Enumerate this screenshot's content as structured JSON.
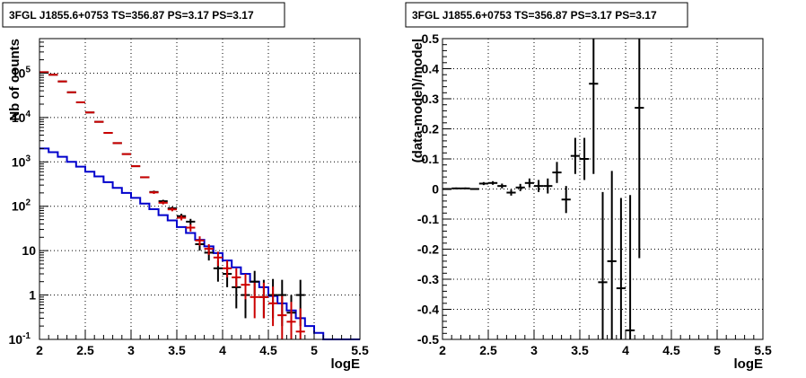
{
  "chart_data": [
    {
      "type": "scatter",
      "title": "3FGL J1855.6+0753 TS=356.87 PS=3.17 PS=3.17",
      "xlabel": "logE",
      "ylabel": "Nb of counts",
      "xlim": [
        2,
        5.5
      ],
      "ylim": [
        0.1,
        600000
      ],
      "yscale": "log",
      "grid": true,
      "x_ticks": [
        "2",
        "2.5",
        "3",
        "3.5",
        "4",
        "4.5",
        "5",
        "5.5"
      ],
      "y_ticks": [
        {
          "value": 0.1,
          "label": "10^-1"
        },
        {
          "value": 1,
          "label": "1"
        },
        {
          "value": 10,
          "label": "10"
        },
        {
          "value": 100,
          "label": "10^2"
        },
        {
          "value": 1000,
          "label": "10^3"
        },
        {
          "value": 10000,
          "label": "10^4"
        },
        {
          "value": 100000,
          "label": "10^5"
        }
      ],
      "bin_width": 0.1,
      "series": [
        {
          "color": "#0000cc",
          "style": "step",
          "x": [
            2.0,
            2.1,
            2.2,
            2.3,
            2.4,
            2.5,
            2.6,
            2.7,
            2.8,
            2.9,
            3.0,
            3.1,
            3.2,
            3.3,
            3.4,
            3.5,
            3.6,
            3.7,
            3.8,
            3.9,
            4.0,
            4.1,
            4.2,
            4.3,
            4.4,
            4.5,
            4.6,
            4.7,
            4.8,
            4.9,
            5.0,
            5.1,
            5.2,
            5.3,
            5.4
          ],
          "y": [
            2000,
            1650,
            1300,
            1000,
            780,
            600,
            470,
            350,
            260,
            200,
            155,
            115,
            86,
            63,
            48,
            34,
            25,
            17.5,
            12.5,
            8.8,
            6,
            4.2,
            3,
            2,
            1.5,
            0.95,
            0.65,
            0.45,
            0.3,
            0.2,
            0.14,
            0.1,
            0.1,
            0.1,
            0.1
          ]
        },
        {
          "color": "#000000",
          "style": "errorbar",
          "x": [
            2.05,
            2.15,
            2.25,
            2.35,
            2.45,
            2.55,
            2.65,
            2.75,
            2.85,
            2.95,
            3.05,
            3.15,
            3.25,
            3.35,
            3.45,
            3.55,
            3.65,
            3.75,
            3.85,
            3.95,
            4.05,
            4.15,
            4.25,
            4.35,
            4.45,
            4.55,
            4.65,
            4.75,
            4.85
          ],
          "y": [
            105000,
            92000,
            65000,
            37000,
            22000,
            13000,
            8000,
            4500,
            2650,
            1500,
            800,
            450,
            210,
            130,
            90,
            60,
            45,
            14,
            9,
            4,
            3,
            1.5,
            1,
            2,
            0.9,
            1,
            1,
            0.4,
            1
          ],
          "yerr_lo": [
            0,
            0,
            0,
            0,
            0,
            0,
            0,
            0,
            0,
            0,
            0,
            0,
            15,
            10,
            8,
            8,
            7,
            4,
            3,
            2,
            1.5,
            1,
            0.7,
            1,
            0.6,
            0.7,
            0.8,
            0.3,
            0.8
          ],
          "yerr_hi": [
            0,
            0,
            0,
            0,
            0,
            0,
            0,
            0,
            0,
            0,
            0,
            0,
            15,
            10,
            8,
            8,
            7,
            4,
            3,
            2,
            1.5,
            1,
            1.5,
            1.5,
            1.3,
            1.3,
            1.2,
            0.6,
            1.2
          ]
        },
        {
          "color": "#cc0000",
          "style": "errorbar",
          "x": [
            2.05,
            2.15,
            2.25,
            2.35,
            2.45,
            2.55,
            2.65,
            2.75,
            2.85,
            2.95,
            3.05,
            3.15,
            3.25,
            3.35,
            3.45,
            3.55,
            3.65,
            3.75,
            3.85,
            3.95,
            4.05,
            4.15,
            4.25,
            4.35,
            4.45,
            4.55,
            4.65,
            4.75,
            4.85
          ],
          "y": [
            105000,
            92000,
            65000,
            37000,
            22000,
            13000,
            8000,
            4500,
            2650,
            1500,
            800,
            450,
            205,
            120,
            85,
            55,
            33,
            17,
            11,
            7,
            4,
            2.5,
            1.7,
            0.9,
            0.9,
            0.65,
            0.35,
            0.25,
            0.15
          ],
          "yerr_lo": [
            0,
            0,
            0,
            0,
            0,
            0,
            0,
            0,
            0,
            0,
            0,
            0,
            15,
            10,
            8,
            7,
            6,
            4,
            3,
            2.5,
            1.5,
            1,
            0.9,
            0.6,
            0.6,
            0.45,
            0.25,
            0.15,
            0.05
          ],
          "yerr_hi": [
            0,
            0,
            0,
            0,
            0,
            0,
            0,
            0,
            0,
            0,
            0,
            0,
            15,
            10,
            8,
            7,
            6,
            4,
            3,
            2.5,
            2,
            1.5,
            1.3,
            1,
            1,
            0.9,
            0.6,
            0.45,
            0.35
          ]
        }
      ]
    },
    {
      "type": "scatter",
      "title": "3FGL J1855.6+0753 TS=356.87 PS=3.17 PS=3.17",
      "xlabel": "logE",
      "ylabel": "(data-model)/model",
      "xlim": [
        2,
        5.5
      ],
      "ylim": [
        -0.5,
        0.5
      ],
      "grid": true,
      "x_ticks": [
        "2",
        "2.5",
        "3",
        "3.5",
        "4",
        "4.5",
        "5",
        "5.5"
      ],
      "y_ticks": [
        "-0.5",
        "-0.4",
        "-0.3",
        "-0.2",
        "-0.1",
        "0",
        "0.1",
        "0.2",
        "0.3",
        "0.4",
        "0.5"
      ],
      "bin_width": 0.1,
      "series": [
        {
          "color": "#000000",
          "style": "errorbar",
          "x": [
            2.05,
            2.15,
            2.25,
            2.35,
            2.45,
            2.55,
            2.65,
            2.75,
            2.85,
            2.95,
            3.05,
            3.15,
            3.25,
            3.35,
            3.45,
            3.55,
            3.65,
            3.75,
            3.85,
            3.95,
            4.05,
            4.15
          ],
          "y": [
            0.0,
            0.002,
            0.002,
            0.0,
            0.018,
            0.02,
            0.01,
            -0.012,
            0.005,
            0.02,
            0.01,
            0.01,
            0.055,
            -0.035,
            0.11,
            0.1,
            0.35,
            -0.31,
            -0.24,
            -0.33,
            -0.47,
            0.27
          ],
          "yerr": [
            0.003,
            0.003,
            0.003,
            0.003,
            0.005,
            0.006,
            0.008,
            0.01,
            0.012,
            0.015,
            0.02,
            0.025,
            0.035,
            0.045,
            0.06,
            0.07,
            0.3,
            0.3,
            0.3,
            0.3,
            0.45,
            0.5
          ]
        }
      ]
    }
  ]
}
